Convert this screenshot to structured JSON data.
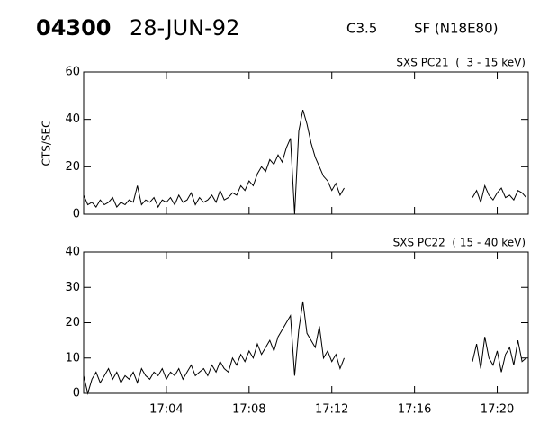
{
  "header": {
    "id": "04300",
    "date": "28-JUN-92",
    "class": "C3.5",
    "location": "SF (N18E80)"
  },
  "chart_data": [
    {
      "type": "line",
      "title": "SXS PC21  (  3 - 15 keV)",
      "y_label": "CTS/SEC",
      "x": [
        0,
        0.2,
        0.4,
        0.6,
        0.8,
        1,
        1.2,
        1.4,
        1.6,
        1.8,
        2,
        2.2,
        2.4,
        2.6,
        2.8,
        3,
        3.2,
        3.4,
        3.6,
        3.8,
        4,
        4.2,
        4.4,
        4.6,
        4.8,
        5,
        5.2,
        5.4,
        5.6,
        5.8,
        6,
        6.2,
        6.4,
        6.6,
        6.8,
        7,
        7.2,
        7.4,
        7.6,
        7.8,
        8,
        8.2,
        8.4,
        8.6,
        8.8,
        9,
        9.2,
        9.4,
        9.6,
        9.8,
        10,
        10.2,
        10.4,
        10.6,
        10.8,
        11,
        11.2,
        11.4,
        11.6,
        11.8,
        12,
        12.2,
        12.4,
        12.6,
        15.8,
        18.8,
        19,
        19.2,
        19.4,
        19.6,
        19.8,
        20,
        20.2,
        20.4,
        20.6,
        20.8,
        21,
        21.2,
        21.4
      ],
      "series": [
        {
          "color": "#000000",
          "values": [
            8,
            4,
            5,
            3,
            6,
            4,
            5,
            7,
            3,
            5,
            4,
            6,
            5,
            12,
            4,
            6,
            5,
            7,
            3,
            6,
            5,
            7,
            4,
            8,
            5,
            6,
            9,
            4,
            7,
            5,
            6,
            8,
            5,
            10,
            6,
            7,
            9,
            8,
            12,
            10,
            14,
            12,
            17,
            20,
            18,
            23,
            21,
            25,
            22,
            28,
            32,
            0,
            35,
            44,
            38,
            30,
            24,
            20,
            16,
            14,
            10,
            13,
            8,
            11,
            null,
            7,
            10,
            5,
            12,
            8,
            6,
            9,
            11,
            7,
            8,
            6,
            10,
            9,
            7
          ]
        }
      ],
      "xlim": [
        0,
        21.5
      ],
      "ylim": [
        0,
        60
      ],
      "yticks": [
        0,
        20,
        40,
        60
      ]
    },
    {
      "type": "line",
      "title": "SXS PC22  ( 15 - 40 keV)",
      "x": [
        0,
        0.2,
        0.4,
        0.6,
        0.8,
        1,
        1.2,
        1.4,
        1.6,
        1.8,
        2,
        2.2,
        2.4,
        2.6,
        2.8,
        3,
        3.2,
        3.4,
        3.6,
        3.8,
        4,
        4.2,
        4.4,
        4.6,
        4.8,
        5,
        5.2,
        5.4,
        5.6,
        5.8,
        6,
        6.2,
        6.4,
        6.6,
        6.8,
        7,
        7.2,
        7.4,
        7.6,
        7.8,
        8,
        8.2,
        8.4,
        8.6,
        8.8,
        9,
        9.2,
        9.4,
        9.6,
        9.8,
        10,
        10.2,
        10.4,
        10.6,
        10.8,
        11,
        11.2,
        11.4,
        11.6,
        11.8,
        12,
        12.2,
        12.4,
        12.6,
        15.8,
        18.8,
        19,
        19.2,
        19.4,
        19.6,
        19.8,
        20,
        20.2,
        20.4,
        20.6,
        20.8,
        21,
        21.2,
        21.4
      ],
      "series": [
        {
          "color": "#000000",
          "values": [
            5,
            0,
            4,
            6,
            3,
            5,
            7,
            4,
            6,
            3,
            5,
            4,
            6,
            3,
            7,
            5,
            4,
            6,
            5,
            7,
            4,
            6,
            5,
            7,
            4,
            6,
            8,
            5,
            6,
            7,
            5,
            8,
            6,
            9,
            7,
            6,
            10,
            8,
            11,
            9,
            12,
            10,
            14,
            11,
            13,
            15,
            12,
            16,
            18,
            20,
            22,
            5,
            18,
            26,
            17,
            15,
            13,
            19,
            10,
            12,
            9,
            11,
            7,
            10,
            null,
            9,
            14,
            7,
            16,
            10,
            8,
            12,
            6,
            11,
            13,
            8,
            15,
            9,
            10
          ]
        }
      ],
      "xlim": [
        0,
        21.5
      ],
      "ylim": [
        0,
        40
      ],
      "yticks": [
        0,
        10,
        20,
        30,
        40
      ],
      "xticks": [
        {
          "value": 4,
          "label": "17:04"
        },
        {
          "value": 8,
          "label": "17:08"
        },
        {
          "value": 12,
          "label": "17:12"
        },
        {
          "value": 16,
          "label": "17:16"
        },
        {
          "value": 20,
          "label": "17:20"
        }
      ]
    }
  ]
}
